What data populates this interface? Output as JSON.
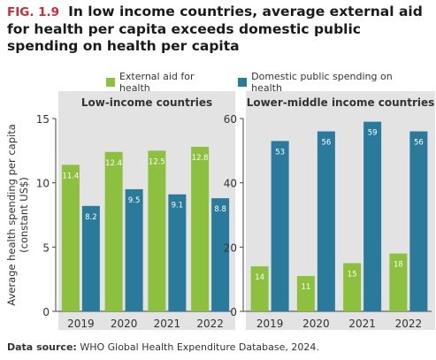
{
  "figure_label": "FIG. 1.9",
  "title": "In low income countries, average external aid for health per capita exceeds domestic public spending on health per capita",
  "source_label": "Data source:",
  "source_text": "WHO Global Health Expenditure Database, 2024.",
  "colors": {
    "external": "#8dc03f",
    "domestic": "#2a7b9b",
    "panel_bg": "#e3e3e3"
  },
  "legend": [
    {
      "label": "External aid for health",
      "color": "#8dc03f"
    },
    {
      "label": "Domestic public spending on health",
      "color": "#2a7b9b"
    }
  ],
  "ylabel": "Average health spending per capita (constant US$)",
  "chart_data": [
    {
      "type": "bar",
      "title": "Low-income countries",
      "categories": [
        "2019",
        "2020",
        "2021",
        "2022"
      ],
      "series": [
        {
          "name": "External aid for health",
          "values": [
            11.4,
            12.4,
            12.5,
            12.8
          ]
        },
        {
          "name": "Domestic public spending on health",
          "values": [
            8.2,
            9.5,
            9.1,
            8.8
          ]
        }
      ],
      "ylim": [
        0,
        15
      ],
      "yticks": [
        0,
        5,
        10,
        15
      ],
      "ylabel": "Average health spending per capita (constant US$)"
    },
    {
      "type": "bar",
      "title": "Lower-middle income countries",
      "categories": [
        "2019",
        "2020",
        "2021",
        "2022"
      ],
      "series": [
        {
          "name": "External aid for health",
          "values": [
            14,
            11,
            15,
            18
          ]
        },
        {
          "name": "Domestic public spending on health",
          "values": [
            53,
            56,
            59,
            56
          ]
        }
      ],
      "ylim": [
        0,
        60
      ],
      "yticks": [
        0,
        20,
        40,
        60
      ]
    }
  ]
}
